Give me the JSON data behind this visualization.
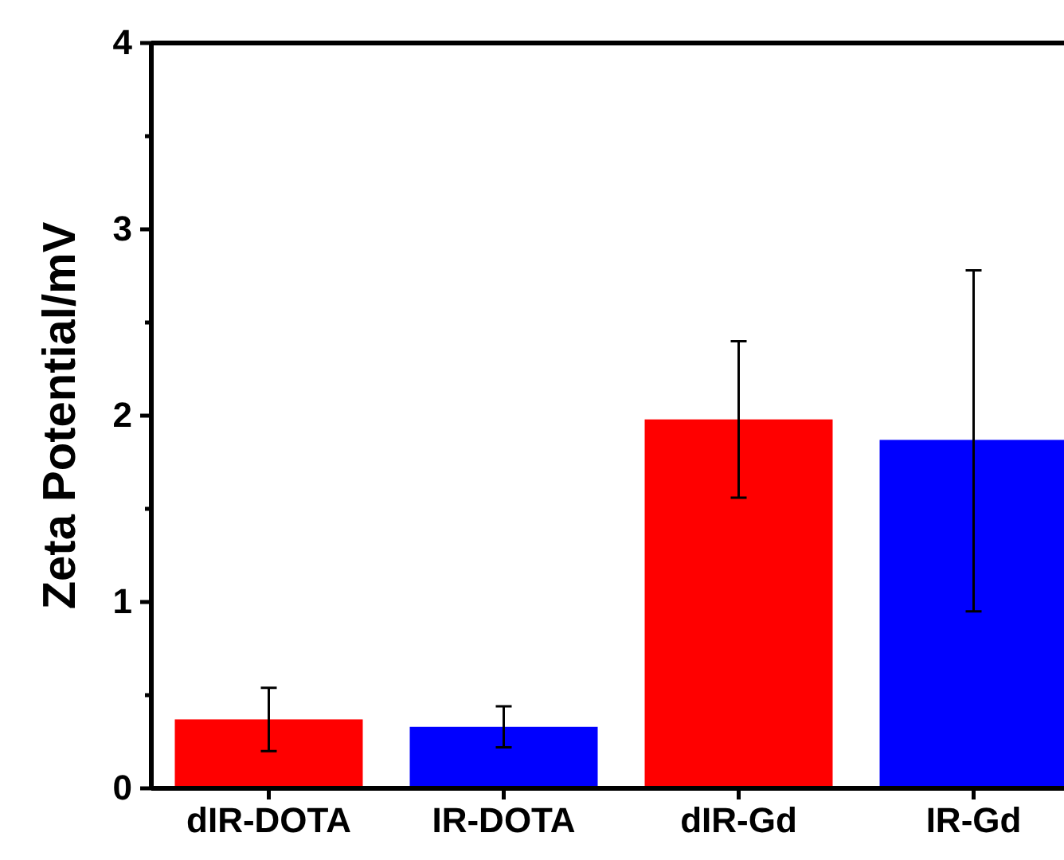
{
  "chart_data": {
    "type": "bar",
    "ylabel": "Zeta Potential/mV",
    "categories": [
      "dIR-DOTA",
      "IR-DOTA",
      "dIR-Gd",
      "IR-Gd"
    ],
    "values": [
      0.37,
      0.33,
      1.98,
      1.87
    ],
    "colors": [
      "#ff0000",
      "#0000ff",
      "#ff0000",
      "#0000ff"
    ],
    "errors": [
      [
        0.2,
        0.54
      ],
      [
        0.22,
        0.44
      ],
      [
        1.56,
        2.4
      ],
      [
        0.95,
        2.78
      ]
    ],
    "ylim": [
      0,
      4
    ],
    "yticks": [
      0,
      {
        "value": 0.5,
        "label": null
      },
      1,
      {
        "value": 1.5,
        "label": null
      },
      2,
      {
        "value": 2.5,
        "label": null
      },
      3,
      {
        "value": 3.5,
        "label": null
      },
      4
    ],
    "grid": false
  }
}
